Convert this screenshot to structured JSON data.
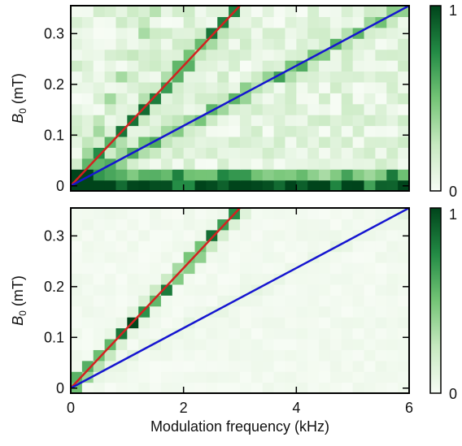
{
  "chart_data": [
    {
      "type": "heatmap",
      "panel": "top",
      "xlabel": "",
      "ylabel": "B0 (mT)",
      "ylabel_parts": {
        "symbol": "B",
        "subscript": "0",
        "unit": " (mT)"
      },
      "xlim": [
        0,
        6
      ],
      "ylim": [
        -0.01,
        0.355
      ],
      "xticks": [
        0,
        2,
        4,
        6
      ],
      "xtick_labels": [
        "",
        "",
        "",
        ""
      ],
      "yticks": [
        0,
        0.1,
        0.2,
        0.3
      ],
      "ytick_labels": [
        "0",
        "0.1",
        "0.2",
        "0.3"
      ],
      "grid": false,
      "colormap": "Greens",
      "colorbar": {
        "min": 0,
        "max": 1,
        "tick_labels": [
          "0",
          "1"
        ]
      },
      "grid_size": {
        "x_bins": 30,
        "y_bins": 17
      },
      "lines": [
        {
          "color": "#d42020",
          "x": [
            0,
            3.0
          ],
          "y": [
            0,
            0.355
          ]
        },
        {
          "color": "#1515d0",
          "x": [
            0,
            6.0
          ],
          "y": [
            0,
            0.355
          ]
        }
      ],
      "noise_level": 0.22,
      "ridges": [
        {
          "slope_mT_per_kHz": 0.118,
          "peak": 0.9
        },
        {
          "slope_mT_per_kHz": 0.059,
          "peak": 0.5
        },
        {
          "slope_mT_per_kHz": 0.236,
          "peak": 0.35
        }
      ],
      "bright_rows_B0": [
        0.0,
        0.01
      ]
    },
    {
      "type": "heatmap",
      "panel": "bottom",
      "xlabel": "Modulation frequency (kHz)",
      "ylabel": "B0 (mT)",
      "ylabel_parts": {
        "symbol": "B",
        "subscript": "0",
        "unit": " (mT)"
      },
      "xlim": [
        0,
        6
      ],
      "ylim": [
        -0.01,
        0.355
      ],
      "xticks": [
        0,
        2,
        4,
        6
      ],
      "xtick_labels": [
        "0",
        "2",
        "4",
        "6"
      ],
      "yticks": [
        0,
        0.1,
        0.2,
        0.3
      ],
      "ytick_labels": [
        "0",
        "0.1",
        "0.2",
        "0.3"
      ],
      "grid": false,
      "colormap": "Greens",
      "colorbar": {
        "min": 0,
        "max": 1,
        "tick_labels": [
          "0",
          "1"
        ]
      },
      "grid_size": {
        "x_bins": 30,
        "y_bins": 17
      },
      "lines": [
        {
          "color": "#d42020",
          "x": [
            0,
            3.0
          ],
          "y": [
            0,
            0.355
          ]
        },
        {
          "color": "#1515d0",
          "x": [
            0,
            6.0
          ],
          "y": [
            0,
            0.355
          ]
        }
      ],
      "noise_level": 0.05,
      "ridges": [
        {
          "slope_mT_per_kHz": 0.118,
          "peak": 1.0
        },
        {
          "slope_mT_per_kHz": 0.059,
          "peak": 0.06
        }
      ],
      "bright_rows_B0": []
    }
  ]
}
